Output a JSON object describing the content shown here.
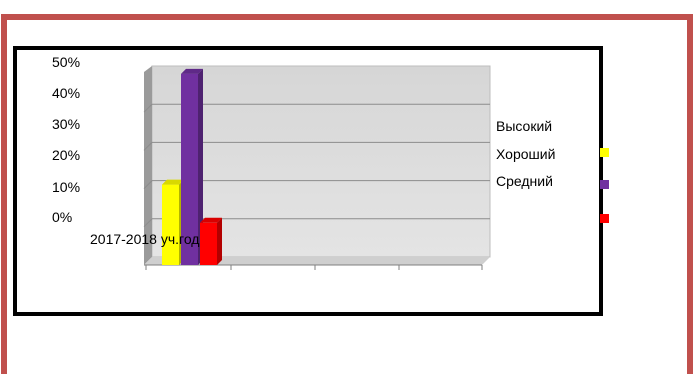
{
  "chart_data": {
    "type": "bar",
    "categories": [
      "2017-2018 уч.год"
    ],
    "series": [
      {
        "name": "Высокий",
        "color": "#ffff00",
        "values": [
          20
        ]
      },
      {
        "name": "Хороший",
        "color": "#7030a0",
        "values": [
          49
        ]
      },
      {
        "name": "Средний",
        "color": "#ff0000",
        "values": [
          10
        ]
      }
    ],
    "ylim": [
      0,
      50
    ],
    "yticks": [
      "50%",
      "40%",
      "30%",
      "20%",
      "10%",
      "0%"
    ],
    "grid": true,
    "legend_position": "right",
    "title": "",
    "xlabel": "",
    "ylabel": ""
  }
}
